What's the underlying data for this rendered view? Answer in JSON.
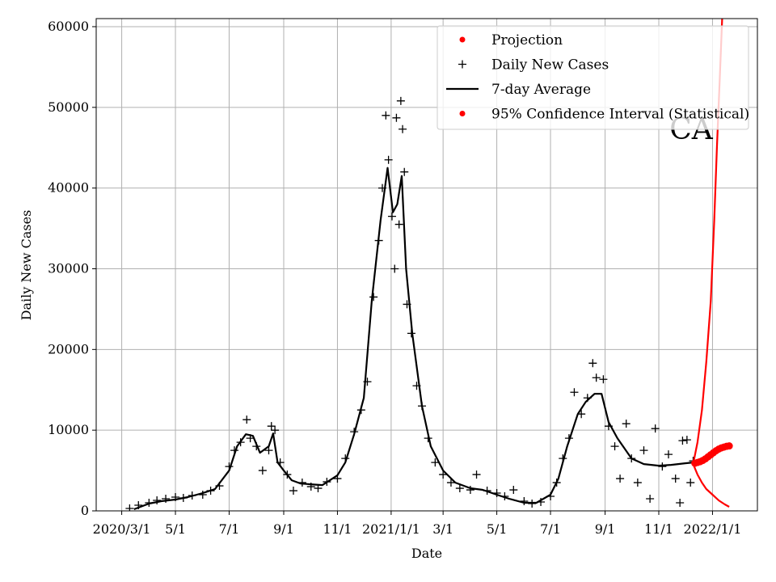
{
  "chart_data": {
    "type": "line",
    "title": "",
    "annotation": "CA",
    "xlabel": "Date",
    "ylabel": "Daily New Cases",
    "ylim": [
      0,
      61000
    ],
    "xlim": [
      "2020-02-01",
      "2022-02-21"
    ],
    "grid": true,
    "legend_position": "top-right",
    "x_ticks": [
      {
        "date": "2020-03-01",
        "label": "2020/3/1"
      },
      {
        "date": "2020-05-01",
        "label": "5/1"
      },
      {
        "date": "2020-07-01",
        "label": "7/1"
      },
      {
        "date": "2020-09-01",
        "label": "9/1"
      },
      {
        "date": "2020-11-01",
        "label": "11/1"
      },
      {
        "date": "2021-01-01",
        "label": "2021/1/1"
      },
      {
        "date": "2021-03-01",
        "label": "3/1"
      },
      {
        "date": "2021-05-01",
        "label": "5/1"
      },
      {
        "date": "2021-07-01",
        "label": "7/1"
      },
      {
        "date": "2021-09-01",
        "label": "9/1"
      },
      {
        "date": "2021-11-01",
        "label": "11/1"
      },
      {
        "date": "2022-01-01",
        "label": "2022/1/1"
      }
    ],
    "y_ticks": [
      0,
      10000,
      20000,
      30000,
      40000,
      50000,
      60000
    ],
    "legend": [
      {
        "label": "Projection",
        "marker": "dot",
        "color": "#ff0000"
      },
      {
        "label": "Daily New Cases",
        "marker": "plus",
        "color": "#000000"
      },
      {
        "label": "7-day Average",
        "marker": "line",
        "color": "#000000"
      },
      {
        "label": "95% Confidence Interval (Statistical)",
        "marker": "dot",
        "color": "#ff0000"
      }
    ],
    "series": [
      {
        "name": "7-day Average",
        "style": "line",
        "color": "#000000",
        "points": [
          [
            "2020-03-15",
            200
          ],
          [
            "2020-04-01",
            900
          ],
          [
            "2020-04-15",
            1200
          ],
          [
            "2020-05-01",
            1400
          ],
          [
            "2020-05-15",
            1700
          ],
          [
            "2020-06-01",
            2200
          ],
          [
            "2020-06-15",
            2700
          ],
          [
            "2020-07-01",
            5000
          ],
          [
            "2020-07-10",
            8000
          ],
          [
            "2020-07-20",
            9500
          ],
          [
            "2020-07-28",
            9300
          ],
          [
            "2020-08-05",
            7200
          ],
          [
            "2020-08-15",
            8000
          ],
          [
            "2020-08-20",
            9600
          ],
          [
            "2020-08-25",
            6000
          ],
          [
            "2020-09-01",
            5000
          ],
          [
            "2020-09-10",
            3800
          ],
          [
            "2020-09-20",
            3400
          ],
          [
            "2020-10-01",
            3300
          ],
          [
            "2020-10-15",
            3200
          ],
          [
            "2020-11-01",
            4400
          ],
          [
            "2020-11-10",
            6000
          ],
          [
            "2020-11-20",
            9500
          ],
          [
            "2020-12-01",
            14000
          ],
          [
            "2020-12-10",
            26000
          ],
          [
            "2020-12-20",
            36000
          ],
          [
            "2020-12-28",
            42500
          ],
          [
            "2021-01-03",
            37000
          ],
          [
            "2021-01-08",
            38000
          ],
          [
            "2021-01-13",
            41500
          ],
          [
            "2021-01-18",
            30000
          ],
          [
            "2021-01-25",
            22000
          ],
          [
            "2021-02-05",
            13000
          ],
          [
            "2021-02-15",
            8000
          ],
          [
            "2021-03-01",
            5000
          ],
          [
            "2021-03-15",
            3500
          ],
          [
            "2021-04-01",
            2800
          ],
          [
            "2021-04-15",
            2600
          ],
          [
            "2021-05-01",
            2000
          ],
          [
            "2021-05-15",
            1500
          ],
          [
            "2021-06-01",
            1000
          ],
          [
            "2021-06-15",
            1000
          ],
          [
            "2021-07-01",
            2000
          ],
          [
            "2021-07-10",
            4000
          ],
          [
            "2021-07-20",
            8000
          ],
          [
            "2021-08-01",
            12000
          ],
          [
            "2021-08-10",
            13500
          ],
          [
            "2021-08-20",
            14500
          ],
          [
            "2021-08-28",
            14500
          ],
          [
            "2021-09-05",
            11000
          ],
          [
            "2021-09-15",
            9000
          ],
          [
            "2021-10-01",
            6500
          ],
          [
            "2021-10-15",
            5800
          ],
          [
            "2021-11-01",
            5600
          ],
          [
            "2021-11-15",
            5700
          ],
          [
            "2021-12-01",
            5900
          ],
          [
            "2021-12-10",
            6000
          ]
        ]
      },
      {
        "name": "Daily New Cases",
        "style": "plus",
        "color": "#000000",
        "points": [
          [
            "2020-03-10",
            300
          ],
          [
            "2020-03-20",
            700
          ],
          [
            "2020-04-01",
            1000
          ],
          [
            "2020-04-10",
            1300
          ],
          [
            "2020-04-20",
            1500
          ],
          [
            "2020-05-01",
            1700
          ],
          [
            "2020-05-10",
            1600
          ],
          [
            "2020-05-20",
            1900
          ],
          [
            "2020-06-01",
            2000
          ],
          [
            "2020-06-10",
            2500
          ],
          [
            "2020-06-20",
            3100
          ],
          [
            "2020-07-01",
            5500
          ],
          [
            "2020-07-07",
            7500
          ],
          [
            "2020-07-14",
            8500
          ],
          [
            "2020-07-21",
            11300
          ],
          [
            "2020-07-25",
            9000
          ],
          [
            "2020-08-01",
            8000
          ],
          [
            "2020-08-08",
            5000
          ],
          [
            "2020-08-15",
            7500
          ],
          [
            "2020-08-18",
            10500
          ],
          [
            "2020-08-22",
            10000
          ],
          [
            "2020-08-28",
            6000
          ],
          [
            "2020-09-05",
            4500
          ],
          [
            "2020-09-12",
            2500
          ],
          [
            "2020-09-22",
            3500
          ],
          [
            "2020-10-02",
            3000
          ],
          [
            "2020-10-10",
            2800
          ],
          [
            "2020-10-20",
            3600
          ],
          [
            "2020-11-01",
            4000
          ],
          [
            "2020-11-10",
            6500
          ],
          [
            "2020-11-20",
            9800
          ],
          [
            "2020-11-28",
            12500
          ],
          [
            "2020-12-05",
            16000
          ],
          [
            "2020-12-12",
            26500
          ],
          [
            "2020-12-18",
            33500
          ],
          [
            "2020-12-22",
            40000
          ],
          [
            "2020-12-26",
            49000
          ],
          [
            "2020-12-29",
            43500
          ],
          [
            "2021-01-02",
            36500
          ],
          [
            "2021-01-05",
            30000
          ],
          [
            "2021-01-07",
            48700
          ],
          [
            "2021-01-10",
            35500
          ],
          [
            "2021-01-12",
            50800
          ],
          [
            "2021-01-14",
            47300
          ],
          [
            "2021-01-16",
            42000
          ],
          [
            "2021-01-19",
            25600
          ],
          [
            "2021-01-24",
            22000
          ],
          [
            "2021-01-30",
            15500
          ],
          [
            "2021-02-05",
            13000
          ],
          [
            "2021-02-12",
            9000
          ],
          [
            "2021-02-20",
            6000
          ],
          [
            "2021-03-01",
            4500
          ],
          [
            "2021-03-10",
            3500
          ],
          [
            "2021-03-20",
            2800
          ],
          [
            "2021-04-01",
            2600
          ],
          [
            "2021-04-08",
            4500
          ],
          [
            "2021-04-20",
            2500
          ],
          [
            "2021-05-01",
            2200
          ],
          [
            "2021-05-10",
            1800
          ],
          [
            "2021-05-20",
            2600
          ],
          [
            "2021-06-01",
            1200
          ],
          [
            "2021-06-10",
            900
          ],
          [
            "2021-06-20",
            1100
          ],
          [
            "2021-07-01",
            1800
          ],
          [
            "2021-07-08",
            3500
          ],
          [
            "2021-07-15",
            6500
          ],
          [
            "2021-07-22",
            9000
          ],
          [
            "2021-07-28",
            14700
          ],
          [
            "2021-08-05",
            12000
          ],
          [
            "2021-08-12",
            14000
          ],
          [
            "2021-08-18",
            18300
          ],
          [
            "2021-08-22",
            16500
          ],
          [
            "2021-08-30",
            16300
          ],
          [
            "2021-09-05",
            10500
          ],
          [
            "2021-09-12",
            8000
          ],
          [
            "2021-09-18",
            4000
          ],
          [
            "2021-09-25",
            10800
          ],
          [
            "2021-10-01",
            6500
          ],
          [
            "2021-10-08",
            3500
          ],
          [
            "2021-10-15",
            7500
          ],
          [
            "2021-10-22",
            1500
          ],
          [
            "2021-10-28",
            10200
          ],
          [
            "2021-11-05",
            5500
          ],
          [
            "2021-11-12",
            7000
          ],
          [
            "2021-11-20",
            4000
          ],
          [
            "2021-11-25",
            1000
          ],
          [
            "2021-11-28",
            8700
          ],
          [
            "2021-12-03",
            8800
          ],
          [
            "2021-12-07",
            3500
          ],
          [
            "2021-12-10",
            6200
          ]
        ]
      },
      {
        "name": "Projection",
        "style": "dot",
        "color": "#ff0000",
        "points": [
          [
            "2021-12-12",
            5900
          ],
          [
            "2021-12-15",
            6000
          ],
          [
            "2021-12-18",
            6100
          ],
          [
            "2021-12-21",
            6250
          ],
          [
            "2021-12-24",
            6450
          ],
          [
            "2021-12-27",
            6700
          ],
          [
            "2021-12-30",
            6950
          ],
          [
            "2022-01-02",
            7200
          ],
          [
            "2022-01-05",
            7450
          ],
          [
            "2022-01-08",
            7650
          ],
          [
            "2022-01-11",
            7800
          ],
          [
            "2022-01-14",
            7900
          ],
          [
            "2022-01-17",
            8000
          ],
          [
            "2022-01-20",
            8050
          ]
        ]
      },
      {
        "name": "95% Confidence Interval (Statistical)",
        "style": "line",
        "color": "#ff0000",
        "points": [
          [
            "2021-12-10",
            5800
          ],
          [
            "2021-12-15",
            8500
          ],
          [
            "2021-12-20",
            12500
          ],
          [
            "2021-12-25",
            18500
          ],
          [
            "2021-12-30",
            26000
          ],
          [
            "2022-01-03",
            36000
          ],
          [
            "2022-01-06",
            45000
          ],
          [
            "2022-01-09",
            53000
          ],
          [
            "2022-01-12",
            61000
          ]
        ]
      },
      {
        "name": "95% Confidence Interval (Statistical)",
        "style": "line",
        "color": "#ff0000",
        "points": [
          [
            "2021-12-10",
            5800
          ],
          [
            "2021-12-15",
            4500
          ],
          [
            "2021-12-20",
            3500
          ],
          [
            "2021-12-25",
            2700
          ],
          [
            "2022-01-01",
            2000
          ],
          [
            "2022-01-08",
            1300
          ],
          [
            "2022-01-15",
            800
          ],
          [
            "2022-01-20",
            500
          ]
        ]
      }
    ]
  }
}
